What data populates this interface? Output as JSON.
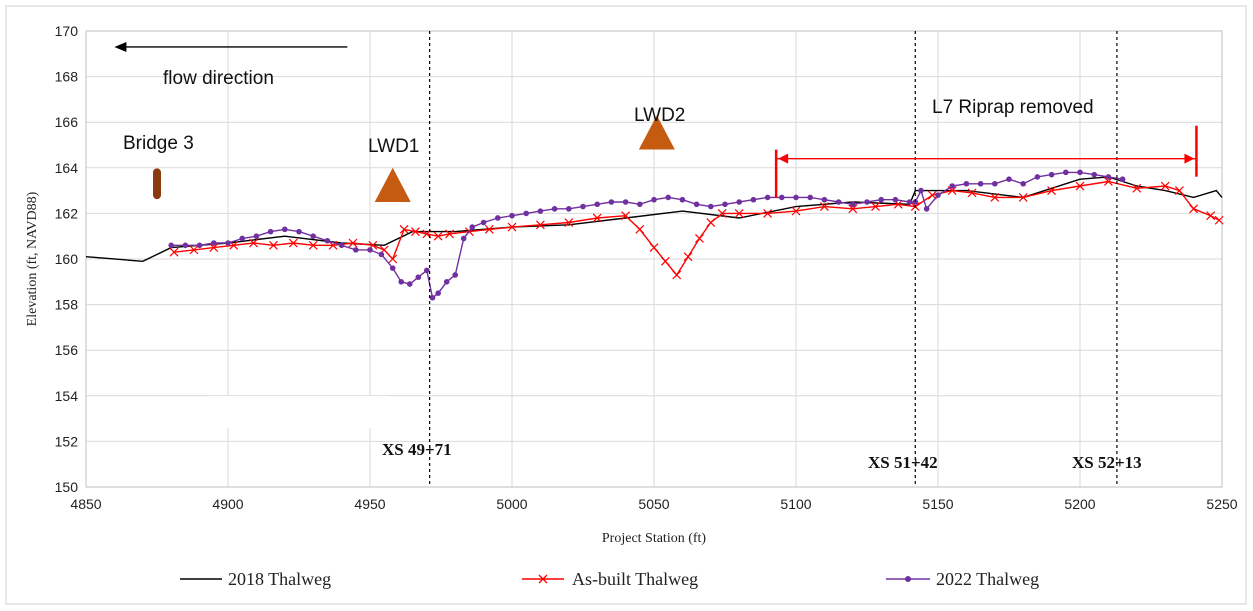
{
  "chart_data": {
    "type": "line",
    "title": "",
    "xlabel": "Project Station (ft)",
    "ylabel": "Elevation (ft, NAVD88)",
    "xlim": [
      4850,
      5250
    ],
    "ylim": [
      150,
      170
    ],
    "x_ticks": [
      4850,
      4900,
      4950,
      5000,
      5050,
      5100,
      5150,
      5200,
      5250
    ],
    "y_ticks": [
      150,
      152,
      154,
      156,
      158,
      160,
      162,
      164,
      166,
      168,
      170
    ],
    "grid": true,
    "legend_position": "bottom",
    "series": [
      {
        "name": "2018 Thalweg",
        "color": "#000000",
        "marker": "none",
        "x": [
          4850,
          4870,
          4880,
          4900,
          4920,
          4940,
          4955,
          4965,
          4980,
          5000,
          5020,
          5040,
          5060,
          5080,
          5100,
          5120,
          5140,
          5142,
          5160,
          5180,
          5200,
          5210,
          5220,
          5230,
          5240,
          5248,
          5250
        ],
        "y": [
          160.1,
          159.9,
          160.5,
          160.7,
          161.0,
          160.7,
          160.6,
          161.2,
          161.2,
          161.4,
          161.5,
          161.8,
          162.1,
          161.8,
          162.3,
          162.5,
          162.4,
          163.0,
          163.0,
          162.7,
          163.5,
          163.6,
          163.2,
          163.0,
          162.7,
          163.0,
          162.7
        ]
      },
      {
        "name": "As-built Thalweg",
        "color": "#ff0000",
        "marker": "x",
        "x": [
          4881,
          4888,
          4895,
          4902,
          4909,
          4916,
          4923,
          4930,
          4937,
          4944,
          4951,
          4955,
          4958,
          4962,
          4966,
          4970,
          4974,
          4978,
          4985,
          4992,
          5000,
          5010,
          5020,
          5030,
          5040,
          5045,
          5050,
          5054,
          5058,
          5062,
          5066,
          5070,
          5074,
          5080,
          5090,
          5100,
          5110,
          5120,
          5128,
          5136,
          5142,
          5148,
          5155,
          5162,
          5170,
          5180,
          5190,
          5200,
          5210,
          5220,
          5230,
          5235,
          5240,
          5246,
          5249
        ],
        "y": [
          160.3,
          160.4,
          160.5,
          160.6,
          160.7,
          160.6,
          160.7,
          160.6,
          160.6,
          160.7,
          160.6,
          160.4,
          160.0,
          161.3,
          161.2,
          161.1,
          161.0,
          161.1,
          161.2,
          161.3,
          161.4,
          161.5,
          161.6,
          161.8,
          161.9,
          161.3,
          160.5,
          159.9,
          159.3,
          160.1,
          160.9,
          161.6,
          162.0,
          162.0,
          162.0,
          162.1,
          162.3,
          162.2,
          162.3,
          162.4,
          162.3,
          162.8,
          163.0,
          162.9,
          162.7,
          162.7,
          163.0,
          163.2,
          163.4,
          163.1,
          163.2,
          163.0,
          162.2,
          161.9,
          161.7
        ]
      },
      {
        "name": "2022 Thalweg",
        "color": "#7030a0",
        "marker": "dot",
        "x": [
          4880,
          4885,
          4890,
          4895,
          4900,
          4905,
          4910,
          4915,
          4920,
          4925,
          4930,
          4935,
          4940,
          4945,
          4950,
          4954,
          4958,
          4961,
          4964,
          4967,
          4970,
          4972,
          4974,
          4977,
          4980,
          4983,
          4986,
          4990,
          4995,
          5000,
          5005,
          5010,
          5015,
          5020,
          5025,
          5030,
          5035,
          5040,
          5045,
          5050,
          5055,
          5060,
          5065,
          5070,
          5075,
          5080,
          5085,
          5090,
          5095,
          5100,
          5105,
          5110,
          5115,
          5120,
          5125,
          5130,
          5135,
          5140,
          5142,
          5144,
          5146,
          5150,
          5155,
          5160,
          5165,
          5170,
          5175,
          5180,
          5185,
          5190,
          5195,
          5200,
          5205,
          5210,
          5215
        ],
        "y": [
          160.6,
          160.6,
          160.6,
          160.7,
          160.7,
          160.9,
          161.0,
          161.2,
          161.3,
          161.2,
          161.0,
          160.8,
          160.6,
          160.4,
          160.4,
          160.2,
          159.6,
          159.0,
          158.9,
          159.2,
          159.5,
          158.3,
          158.5,
          159.0,
          159.3,
          160.9,
          161.4,
          161.6,
          161.8,
          161.9,
          162.0,
          162.1,
          162.2,
          162.2,
          162.3,
          162.4,
          162.5,
          162.5,
          162.4,
          162.6,
          162.7,
          162.6,
          162.4,
          162.3,
          162.4,
          162.5,
          162.6,
          162.7,
          162.7,
          162.7,
          162.7,
          162.6,
          162.5,
          162.4,
          162.5,
          162.6,
          162.6,
          162.5,
          162.5,
          163.0,
          162.2,
          162.8,
          163.2,
          163.3,
          163.3,
          163.3,
          163.5,
          163.3,
          163.6,
          163.7,
          163.8,
          163.8,
          163.7,
          163.6,
          163.5
        ]
      }
    ],
    "annotations": {
      "flow_label": "flow direction",
      "bridge_label": "Bridge 3",
      "lwd1_label": "LWD1",
      "lwd2_label": "LWD2",
      "riprap_label": "L7 Riprap removed",
      "xs1_label": "XS 49+71",
      "xs2_label": "XS 51+42",
      "xs3_label": "XS 52+13",
      "flow_arrow": {
        "from_x": 4942,
        "to_x": 4860,
        "y": 169.3
      },
      "bridge": {
        "x": 4875,
        "y_bottom": 162.8,
        "y_top": 163.8
      },
      "lwd1": {
        "x": 4958,
        "y_base": 162.5,
        "y_top": 164.0
      },
      "lwd2": {
        "x": 5051,
        "y_base": 164.8,
        "y_top": 166.3
      },
      "riprap": {
        "x_start": 5093,
        "x_end": 5241,
        "y": 164.4
      },
      "xs_lines": [
        4971,
        5142,
        5213
      ],
      "colors": {
        "bridge": "#8b3a0f",
        "lwd": "#c55a11",
        "riprap": "#ff0000",
        "xs_line": "#000000"
      }
    }
  }
}
